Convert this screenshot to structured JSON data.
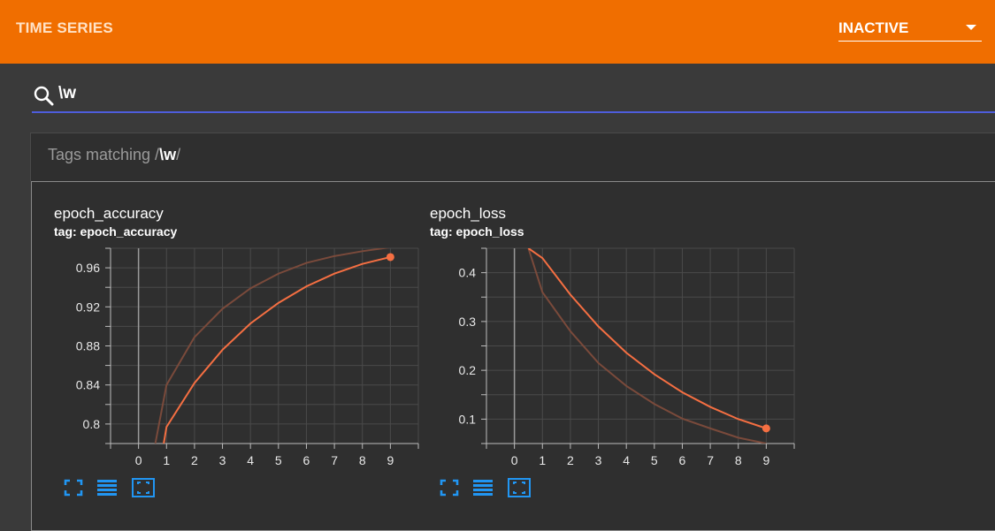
{
  "header": {
    "title": "TIME SERIES",
    "run_selector": {
      "value": "INACTIVE"
    }
  },
  "search": {
    "value": "\\w"
  },
  "tags_header": {
    "prefix": "Tags matching /",
    "pattern": "\\w",
    "suffix": "/"
  },
  "icons": {
    "search": "search-icon",
    "fullscreen": "fullscreen-icon",
    "data_table": "data-table-icon",
    "fit_domain": "fit-domain-icon"
  },
  "colors": {
    "accent": "#f06e00",
    "series": "#f56f42",
    "series_raw": "#7a4a3b",
    "search_underline": "#4e5ddc"
  },
  "cards": [
    {
      "title": "epoch_accuracy",
      "tag": "tag: epoch_accuracy"
    },
    {
      "title": "epoch_loss",
      "tag": "tag: epoch_loss"
    }
  ],
  "chart_data": [
    {
      "type": "line",
      "x_ticks": [
        "0",
        "1",
        "2",
        "3",
        "4",
        "5",
        "6",
        "7",
        "8",
        "9"
      ],
      "y_ticks": [
        "0.8",
        "0.84",
        "0.88",
        "0.92",
        "0.96"
      ],
      "xlim": [
        -1,
        10
      ],
      "ylim": [
        0.78,
        0.98
      ],
      "grid": true,
      "series": [
        {
          "role": "raw",
          "x": [
            0.6,
            1,
            2,
            3,
            4,
            5,
            6,
            7,
            8,
            9
          ],
          "y": [
            0.78,
            0.84,
            0.889,
            0.918,
            0.939,
            0.954,
            0.965,
            0.972,
            0.977,
            0.981
          ]
        },
        {
          "role": "smoothed",
          "x": [
            0.9,
            1,
            2,
            3,
            4,
            5,
            6,
            7,
            8,
            9
          ],
          "y": [
            0.78,
            0.797,
            0.842,
            0.876,
            0.903,
            0.924,
            0.941,
            0.954,
            0.964,
            0.971
          ]
        }
      ]
    },
    {
      "type": "line",
      "x_ticks": [
        "0",
        "1",
        "2",
        "3",
        "4",
        "5",
        "6",
        "7",
        "8",
        "9"
      ],
      "y_ticks": [
        "0.1",
        "0.2",
        "0.3",
        "0.4"
      ],
      "xlim": [
        -1,
        10
      ],
      "ylim": [
        0.05,
        0.45
      ],
      "grid": true,
      "series": [
        {
          "role": "raw",
          "x": [
            0.5,
            1,
            2,
            3,
            4,
            5,
            6,
            7,
            8,
            9
          ],
          "y": [
            0.45,
            0.36,
            0.28,
            0.215,
            0.168,
            0.131,
            0.101,
            0.081,
            0.062,
            0.05
          ]
        },
        {
          "role": "smoothed",
          "x": [
            0.5,
            1,
            2,
            3,
            4,
            5,
            6,
            7,
            8,
            9
          ],
          "y": [
            0.45,
            0.43,
            0.355,
            0.29,
            0.236,
            0.192,
            0.155,
            0.125,
            0.1,
            0.081
          ]
        }
      ]
    }
  ]
}
